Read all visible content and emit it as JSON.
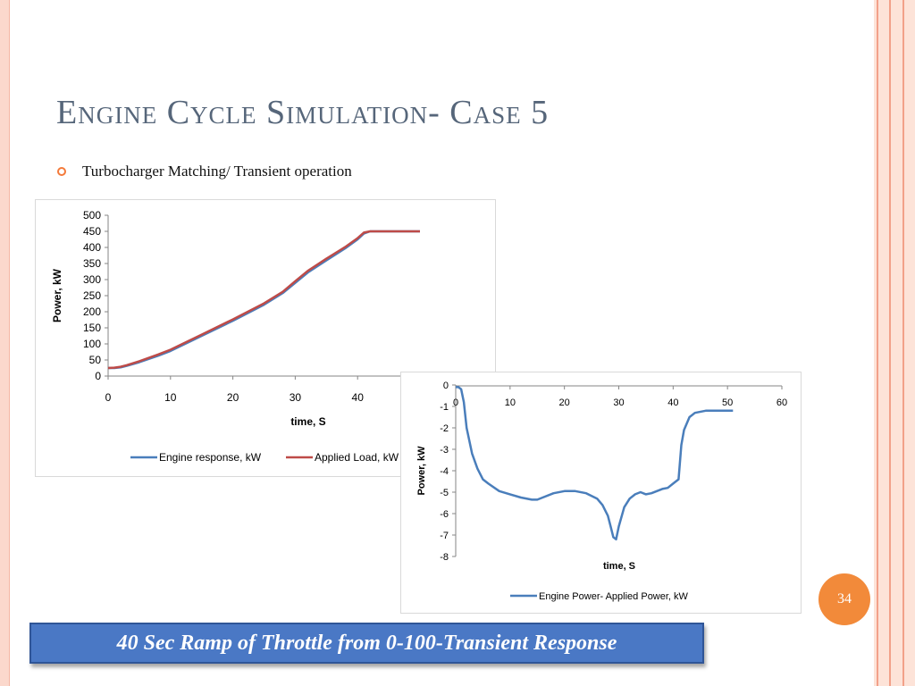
{
  "slide": {
    "title": "Engine Cycle Simulation- Case 5",
    "bullet": "Turbocharger Matching/ Transient operation",
    "page_number": "34",
    "caption": "40 Sec Ramp of Throttle from 0-100-Transient Response",
    "colors": {
      "title": "#56667a",
      "accent": "#f28a3a",
      "caption_bg": "#4a78c5"
    }
  },
  "chart_data": [
    {
      "type": "line",
      "xlabel": "time, S",
      "ylabel": "Power, kW",
      "xlim": [
        0,
        50
      ],
      "ylim": [
        0,
        500
      ],
      "x_ticks": [
        0,
        10,
        20,
        30,
        40
      ],
      "y_ticks": [
        0,
        50,
        100,
        150,
        200,
        250,
        300,
        350,
        400,
        450,
        500
      ],
      "grid": false,
      "legend": "bottom",
      "series": [
        {
          "name": "Engine response, kW",
          "color": "#4a7ebb",
          "x": [
            0,
            1,
            2,
            3,
            5,
            8,
            10,
            15,
            20,
            25,
            28,
            30,
            32,
            35,
            38,
            40,
            41,
            42,
            45,
            50
          ],
          "y": [
            25,
            25,
            27,
            32,
            43,
            63,
            78,
            125,
            172,
            222,
            258,
            290,
            322,
            360,
            397,
            425,
            443,
            450,
            450,
            450
          ]
        },
        {
          "name": "Applied Load, kW",
          "color": "#be4b48",
          "x": [
            0,
            1,
            2,
            3,
            5,
            8,
            10,
            15,
            20,
            25,
            28,
            30,
            32,
            35,
            38,
            40,
            41,
            42,
            45,
            50
          ],
          "y": [
            25,
            26,
            29,
            34,
            46,
            67,
            82,
            129,
            176,
            226,
            262,
            295,
            327,
            365,
            401,
            429,
            446,
            450,
            450,
            450
          ]
        }
      ]
    },
    {
      "type": "line",
      "xlabel": "time, S",
      "ylabel": "Power, kW",
      "xlim": [
        0,
        60
      ],
      "ylim": [
        -8,
        0
      ],
      "x_ticks": [
        0,
        10,
        20,
        30,
        40,
        50,
        60
      ],
      "y_ticks": [
        0,
        -1,
        -2,
        -3,
        -4,
        -5,
        -6,
        -7,
        -8
      ],
      "grid": false,
      "legend": "bottom",
      "series": [
        {
          "name": "Engine Power- Applied Power, kW",
          "color": "#4a7ebb",
          "x": [
            0,
            0.5,
            1,
            1.5,
            2,
            3,
            4,
            5,
            6,
            8,
            10,
            12,
            14,
            15,
            16,
            18,
            20,
            22,
            24,
            26,
            27,
            28,
            28.5,
            29,
            29.5,
            30,
            31,
            32,
            33,
            34,
            35,
            36,
            37,
            38,
            39,
            40,
            41,
            41.5,
            42,
            43,
            44,
            46,
            48,
            50,
            51
          ],
          "y": [
            -0.1,
            -0.1,
            -0.2,
            -0.8,
            -2.0,
            -3.2,
            -3.9,
            -4.4,
            -4.6,
            -4.95,
            -5.1,
            -5.25,
            -5.35,
            -5.35,
            -5.25,
            -5.05,
            -4.95,
            -4.95,
            -5.05,
            -5.3,
            -5.6,
            -6.1,
            -6.6,
            -7.1,
            -7.2,
            -6.6,
            -5.7,
            -5.3,
            -5.1,
            -5.0,
            -5.1,
            -5.05,
            -4.95,
            -4.85,
            -4.8,
            -4.6,
            -4.4,
            -2.8,
            -2.1,
            -1.5,
            -1.3,
            -1.2,
            -1.2,
            -1.2,
            -1.2
          ]
        }
      ]
    }
  ]
}
